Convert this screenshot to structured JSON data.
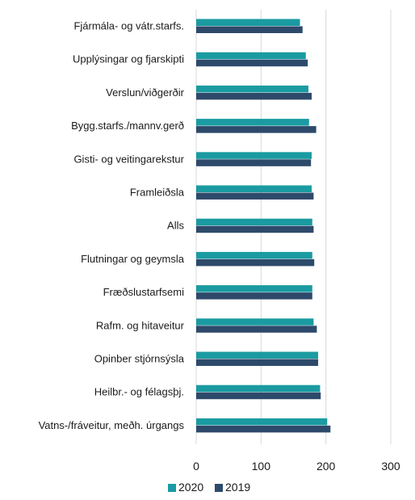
{
  "chart_data": {
    "type": "bar",
    "orientation": "horizontal",
    "categories": [
      "Fjármála- og vátr.starfs.",
      "Upplýsingar og fjarskipti",
      "Verslun/viðgerðir",
      "Bygg.starfs./mannv.gerð",
      "Gisti- og veitingarekstur",
      "Framleiðsla",
      "Alls",
      "Flutningar og geymsla",
      "Fræðslustarfsemi",
      "Rafm. og hitaveitur",
      "Opinber stjórnsýsla",
      "Heilbr.- og félagsþj.",
      "Vatns-/fráveitur, meðh. úrgangs"
    ],
    "series": [
      {
        "name": "2020",
        "color": "#1a9ba1",
        "values": [
          160,
          169,
          173,
          174,
          178,
          178,
          179,
          179,
          179,
          181,
          188,
          191,
          202
        ]
      },
      {
        "name": "2019",
        "color": "#2e4a6b",
        "values": [
          164,
          172,
          178,
          185,
          177,
          181,
          181,
          182,
          179,
          186,
          188,
          192,
          207
        ]
      }
    ],
    "xlim": [
      0,
      300
    ],
    "xticks": [
      0,
      100,
      200,
      300
    ],
    "xtick_labels": [
      "0",
      "100",
      "200",
      "300"
    ],
    "grid": true,
    "legend_position": "bottom",
    "title": "",
    "xlabel": "",
    "ylabel": ""
  }
}
